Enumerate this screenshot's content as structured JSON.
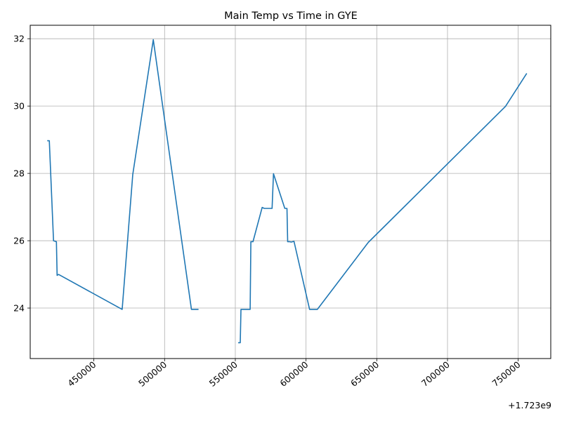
{
  "chart_data": {
    "type": "line",
    "title": "Main Temp vs Time in GYE",
    "xlabel": "",
    "ylabel": "",
    "x_offset_label": "+1.723e9",
    "xlim": [
      405000,
      773000
    ],
    "ylim": [
      22.5,
      32.4
    ],
    "grid": true,
    "x_ticks": [
      {
        "value": 450000,
        "label": "450000"
      },
      {
        "value": 500000,
        "label": "500000"
      },
      {
        "value": 550000,
        "label": "550000"
      },
      {
        "value": 600000,
        "label": "600000"
      },
      {
        "value": 650000,
        "label": "650000"
      },
      {
        "value": 700000,
        "label": "700000"
      },
      {
        "value": 750000,
        "label": "750000"
      }
    ],
    "y_ticks": [
      {
        "value": 24,
        "label": "24"
      },
      {
        "value": 26,
        "label": "26"
      },
      {
        "value": 28,
        "label": "28"
      },
      {
        "value": 30,
        "label": "30"
      },
      {
        "value": 32,
        "label": "32"
      }
    ],
    "series": [
      {
        "name": "main_temp",
        "color": "#1f77b4",
        "segments": [
          {
            "x": [
              417000,
              418500,
              421500,
              423500,
              424000,
              425000,
              470000,
              477500,
              492000,
              519000,
              524000
            ],
            "y": [
              28.97,
              28.97,
              26.0,
              25.97,
              24.97,
              25.0,
              23.96,
              27.97,
              31.97,
              23.96,
              23.96
            ]
          },
          {
            "x": [
              552000,
              553500,
              554000,
              560500,
              561000,
              562500,
              569000,
              570500,
              576000,
              577000,
              585000,
              586500,
              587000,
              588500,
              589500,
              591500,
              602500,
              608000,
              644000,
              741000,
              756000
            ],
            "y": [
              22.97,
              22.97,
              23.96,
              23.96,
              25.97,
              25.97,
              26.99,
              26.96,
              26.96,
              27.99,
              26.96,
              26.96,
              25.97,
              25.97,
              25.96,
              25.98,
              23.96,
              23.96,
              25.95,
              29.99,
              30.97
            ]
          }
        ]
      }
    ]
  }
}
